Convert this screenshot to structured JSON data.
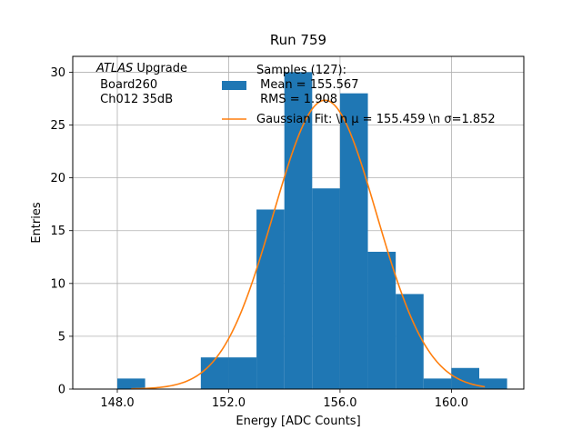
{
  "chart_data": {
    "type": "bar",
    "title": "Run 759",
    "xlabel": "Energy [ADC Counts]",
    "ylabel": "Entries",
    "xlim": [
      146.4,
      162.6
    ],
    "ylim": [
      0,
      31.5
    ],
    "xticks": [
      148.0,
      152.0,
      156.0,
      160.0
    ],
    "xtick_labels": [
      "148.0",
      "152.0",
      "156.0",
      "160.0"
    ],
    "yticks": [
      0,
      5,
      10,
      15,
      20,
      25,
      30
    ],
    "ytick_labels": [
      "0",
      "5",
      "10",
      "15",
      "20",
      "25",
      "30"
    ],
    "grid": true,
    "legend_position": "upper-right",
    "bar_color": "#1f77b4",
    "fit_color": "#ff7f0e",
    "histogram": {
      "bin_edges": [
        148.0,
        149.0,
        150.0,
        151.0,
        152.0,
        153.0,
        154.0,
        155.0,
        156.0,
        157.0,
        158.0,
        159.0,
        160.0,
        161.0,
        162.0
      ],
      "counts": [
        1,
        0,
        0,
        3,
        3,
        17,
        30,
        19,
        28,
        13,
        9,
        1,
        2,
        1
      ]
    },
    "gaussian_fit": {
      "mu": 155.459,
      "sigma": 1.852,
      "amplitude": 27.35,
      "x_range": [
        148.5,
        161.2
      ]
    },
    "annotation": {
      "line1_italic": "ATLAS",
      "line1_rest": " Upgrade",
      "line2": " Board260",
      "line3": " Ch012 35dB"
    },
    "legend": [
      {
        "kind": "patch",
        "lines": [
          "Samples (127):",
          " Mean = 155.567",
          " RMS = 1.908"
        ]
      },
      {
        "kind": "line",
        "lines": [
          "Gaussian Fit: \\n μ = 155.459 \\n σ=1.852"
        ]
      }
    ]
  }
}
